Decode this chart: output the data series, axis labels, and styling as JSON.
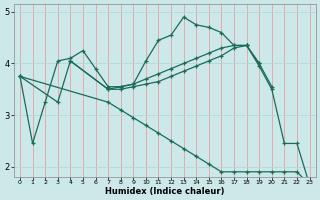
{
  "xlabel": "Humidex (Indice chaleur)",
  "bg_color": "#cce8e8",
  "line_color": "#1a6b5a",
  "grid_color_v": "#e8a0a0",
  "grid_color_h": "#b0d8d8",
  "xlim": [
    -0.5,
    23.5
  ],
  "ylim": [
    1.8,
    5.15
  ],
  "yticks": [
    2,
    3,
    4,
    5
  ],
  "xticks": [
    0,
    1,
    2,
    3,
    4,
    5,
    6,
    7,
    8,
    9,
    10,
    11,
    12,
    13,
    14,
    15,
    16,
    17,
    18,
    19,
    20,
    21,
    22,
    23
  ],
  "series": [
    {
      "x": [
        0,
        1,
        2,
        3,
        4,
        5,
        6,
        7,
        8,
        9,
        10,
        11,
        12,
        13,
        14,
        15,
        16,
        17,
        18,
        19,
        20
      ],
      "y": [
        3.75,
        2.45,
        3.25,
        4.05,
        4.1,
        4.25,
        3.9,
        3.55,
        3.55,
        3.6,
        4.05,
        4.45,
        4.55,
        4.9,
        4.75,
        4.7,
        4.6,
        4.35,
        4.35,
        4.0,
        3.55
      ]
    },
    {
      "x": [
        0,
        7,
        8,
        9,
        10,
        11,
        12,
        13,
        14,
        15,
        16,
        17,
        18,
        19,
        20,
        21,
        22,
        23
      ],
      "y": [
        3.75,
        3.25,
        3.1,
        2.95,
        2.8,
        2.65,
        2.5,
        2.35,
        2.2,
        2.05,
        1.9,
        1.9,
        1.9,
        1.9,
        1.9,
        1.9,
        1.9,
        1.65
      ]
    },
    {
      "x": [
        0,
        3,
        4,
        7,
        8,
        9,
        10,
        11,
        12,
        13,
        14,
        15,
        16,
        17,
        18,
        19
      ],
      "y": [
        3.75,
        3.25,
        4.05,
        3.5,
        3.55,
        3.6,
        3.7,
        3.8,
        3.9,
        4.0,
        4.1,
        4.2,
        4.3,
        4.35,
        4.35,
        4.0
      ]
    },
    {
      "x": [
        4,
        7,
        8,
        9,
        10,
        11,
        12,
        13,
        14,
        15,
        16,
        17,
        18,
        19,
        20,
        21,
        22,
        23
      ],
      "y": [
        4.05,
        3.5,
        3.5,
        3.55,
        3.6,
        3.65,
        3.75,
        3.85,
        3.95,
        4.05,
        4.15,
        4.3,
        4.35,
        3.95,
        3.5,
        2.45,
        2.45,
        1.65
      ]
    }
  ]
}
